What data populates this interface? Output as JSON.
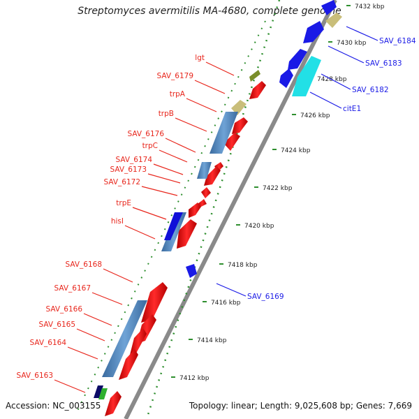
{
  "title": "Streptomyces avermitilis MA-4680, complete genome",
  "footer": {
    "accession": "Accession: NC_003155",
    "topology": "Topology: linear; Length: 9,025,608 bp; Genes: 7,669"
  },
  "colors": {
    "forward_label": "#e8261c",
    "reverse_label": "#1a1ae6",
    "backbone": "#8a8a8a",
    "ruler_tick": "#2f8f2f",
    "text_tick": "#222222"
  },
  "ruler": {
    "ticks": [
      "7412 kbp",
      "7414 kbp",
      "7416 kbp",
      "7418 kbp",
      "7420 kbp",
      "7422 kbp",
      "7424 kbp",
      "7426 kbp",
      "7428 kbp",
      "7430 kbp",
      "7432 kbp"
    ]
  },
  "forward_labels": [
    "lgt",
    "SAV_6179",
    "trpA",
    "trpB",
    "SAV_6176",
    "trpC",
    "SAV_6174",
    "SAV_6173",
    "SAV_6172",
    "trpE",
    "hisI",
    "SAV_6168",
    "SAV_6167",
    "SAV_6166",
    "SAV_6165",
    "SAV_6164",
    "SAV_6163"
  ],
  "reverse_labels": [
    "SAV_6184",
    "SAV_6183",
    "SAV_6182",
    "citE1",
    "SAV_6169"
  ]
}
